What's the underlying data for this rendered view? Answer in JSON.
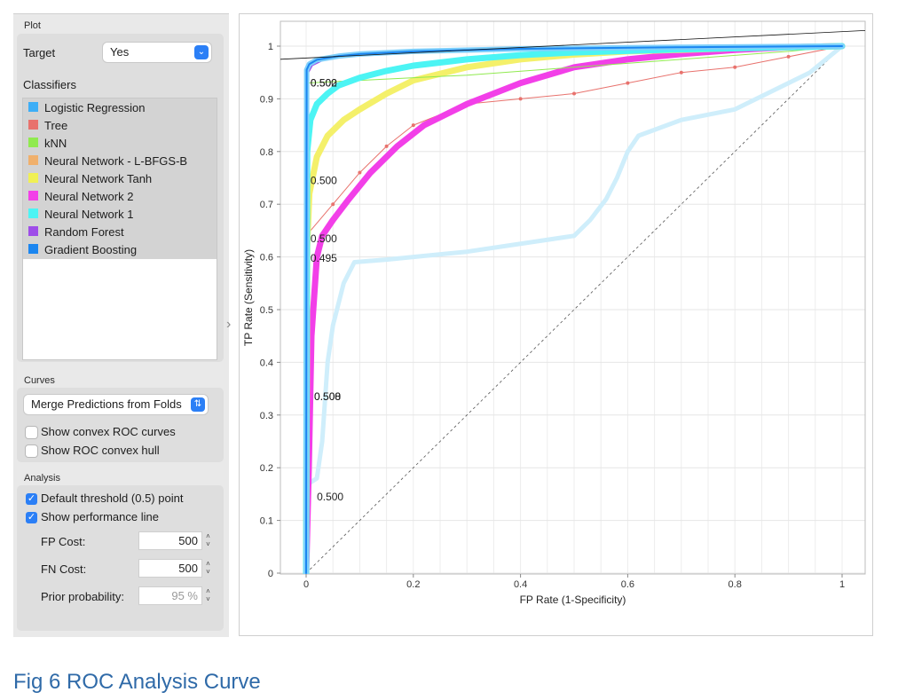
{
  "plot_box": {
    "title": "Plot",
    "target_label": "Target",
    "target_value": "Yes",
    "classifiers_label": "Classifiers",
    "classifiers": [
      {
        "label": "Logistic Regression",
        "color": "#3daef6"
      },
      {
        "label": "Tree",
        "color": "#e8726d"
      },
      {
        "label": "kNN",
        "color": "#90ea4f"
      },
      {
        "label": "Neural Network - L-BFGS-B",
        "color": "#f0b06c"
      },
      {
        "label": "Neural Network Tanh",
        "color": "#f0f054"
      },
      {
        "label": "Neural Network 2",
        "color": "#f23fe8"
      },
      {
        "label": "Neural Network 1",
        "color": "#4cf4f4"
      },
      {
        "label": "Random Forest",
        "color": "#9e4de8"
      },
      {
        "label": "Gradient Boosting",
        "color": "#1b86f0"
      }
    ]
  },
  "curves_box": {
    "title": "Curves",
    "merge_select": "Merge Predictions from Folds",
    "show_convex": "Show convex ROC curves",
    "show_hull": "Show ROC convex hull"
  },
  "analysis_box": {
    "title": "Analysis",
    "default_threshold": "Default threshold (0.5) point",
    "show_perf_line": "Show performance line",
    "fp_cost_label": "FP Cost:",
    "fp_cost_value": "500",
    "fn_cost_label": "FN Cost:",
    "fn_cost_value": "500",
    "prior_label": "Prior probability:",
    "prior_value": "95 %"
  },
  "caption": "Fig 6 ROC Analysis Curve",
  "chart_data": {
    "type": "line",
    "xlabel": "FP Rate (1-Specificity)",
    "ylabel": "TP Rate (Sensitivity)",
    "xlim": [
      0,
      1
    ],
    "ylim": [
      0,
      1
    ],
    "xticks": [
      "0",
      "0.2",
      "0.4",
      "0.6",
      "0.8",
      "1"
    ],
    "yticks": [
      "0",
      "0.1",
      "0.2",
      "0.3",
      "0.4",
      "0.5",
      "0.6",
      "0.7",
      "0.8",
      "0.9",
      "1"
    ],
    "grid": true,
    "series": [
      {
        "name": "Neural Network - L-BFGS-B",
        "color": "#cfeefb",
        "width": 5,
        "points": [
          [
            0,
            0
          ],
          [
            0.005,
            0.17
          ],
          [
            0.02,
            0.18
          ],
          [
            0.03,
            0.25
          ],
          [
            0.04,
            0.4
          ],
          [
            0.05,
            0.47
          ],
          [
            0.07,
            0.55
          ],
          [
            0.09,
            0.59
          ],
          [
            0.15,
            0.595
          ],
          [
            0.3,
            0.61
          ],
          [
            0.5,
            0.64
          ],
          [
            0.53,
            0.67
          ],
          [
            0.56,
            0.71
          ],
          [
            0.58,
            0.75
          ],
          [
            0.6,
            0.8
          ],
          [
            0.62,
            0.83
          ],
          [
            0.7,
            0.86
          ],
          [
            0.8,
            0.88
          ],
          [
            0.9,
            0.93
          ],
          [
            0.94,
            0.95
          ],
          [
            1,
            1
          ]
        ]
      },
      {
        "name": "Tree",
        "color": "#e8726d",
        "width": 1,
        "markers": true,
        "points": [
          [
            0,
            0.64
          ],
          [
            0.05,
            0.7
          ],
          [
            0.1,
            0.76
          ],
          [
            0.15,
            0.81
          ],
          [
            0.2,
            0.85
          ],
          [
            0.3,
            0.89
          ],
          [
            0.4,
            0.9
          ],
          [
            0.5,
            0.91
          ],
          [
            0.6,
            0.93
          ],
          [
            0.7,
            0.95
          ],
          [
            0.8,
            0.96
          ],
          [
            0.9,
            0.98
          ],
          [
            1,
            1
          ]
        ]
      },
      {
        "name": "Neural Network 2",
        "color": "#f23fe8",
        "width": 7,
        "points": [
          [
            0,
            0
          ],
          [
            0.005,
            0.2
          ],
          [
            0.01,
            0.45
          ],
          [
            0.02,
            0.6
          ],
          [
            0.03,
            0.64
          ],
          [
            0.05,
            0.67
          ],
          [
            0.08,
            0.71
          ],
          [
            0.12,
            0.76
          ],
          [
            0.17,
            0.81
          ],
          [
            0.22,
            0.85
          ],
          [
            0.3,
            0.89
          ],
          [
            0.4,
            0.93
          ],
          [
            0.5,
            0.96
          ],
          [
            0.6,
            0.975
          ],
          [
            0.7,
            0.985
          ],
          [
            0.8,
            0.993
          ],
          [
            0.9,
            0.998
          ],
          [
            1,
            1
          ]
        ]
      },
      {
        "name": "Neural Network Tanh",
        "color": "#f4f06a",
        "width": 7,
        "points": [
          [
            0,
            0
          ],
          [
            0.002,
            0.62
          ],
          [
            0.006,
            0.72
          ],
          [
            0.02,
            0.79
          ],
          [
            0.04,
            0.83
          ],
          [
            0.07,
            0.86
          ],
          [
            0.1,
            0.88
          ],
          [
            0.15,
            0.91
          ],
          [
            0.2,
            0.935
          ],
          [
            0.3,
            0.96
          ],
          [
            0.4,
            0.975
          ],
          [
            0.5,
            0.984
          ],
          [
            0.6,
            0.99
          ],
          [
            0.8,
            0.996
          ],
          [
            1,
            1
          ]
        ]
      },
      {
        "name": "kNN",
        "color": "#90ea4f",
        "width": 1,
        "points": [
          [
            0,
            0.93
          ],
          [
            0.1,
            0.935
          ],
          [
            0.3,
            0.945
          ],
          [
            0.5,
            0.96
          ],
          [
            0.7,
            0.975
          ],
          [
            0.9,
            0.99
          ],
          [
            1,
            1
          ]
        ]
      },
      {
        "name": "Neural Network 1",
        "color": "#4cf4f4",
        "width": 7,
        "points": [
          [
            0,
            0
          ],
          [
            0.002,
            0.8
          ],
          [
            0.008,
            0.86
          ],
          [
            0.02,
            0.89
          ],
          [
            0.04,
            0.91
          ],
          [
            0.06,
            0.925
          ],
          [
            0.1,
            0.94
          ],
          [
            0.15,
            0.953
          ],
          [
            0.2,
            0.963
          ],
          [
            0.3,
            0.975
          ],
          [
            0.4,
            0.983
          ],
          [
            0.5,
            0.988
          ],
          [
            0.7,
            0.994
          ],
          [
            1,
            1
          ]
        ]
      },
      {
        "name": "Random Forest",
        "color": "#9e4de8",
        "width": 4,
        "points": [
          [
            0,
            0
          ],
          [
            0.002,
            0.95
          ],
          [
            0.01,
            0.965
          ],
          [
            0.03,
            0.975
          ],
          [
            0.08,
            0.983
          ],
          [
            0.15,
            0.988
          ],
          [
            0.3,
            0.993
          ],
          [
            0.5,
            0.996
          ],
          [
            1,
            1
          ]
        ]
      },
      {
        "name": "Logistic Regression",
        "color": "#7fd0fb",
        "width": 6,
        "points": [
          [
            0,
            0
          ],
          [
            0.001,
            0.955
          ],
          [
            0.006,
            0.966
          ],
          [
            0.02,
            0.974
          ],
          [
            0.06,
            0.981
          ],
          [
            0.1,
            0.985
          ],
          [
            0.2,
            0.99
          ],
          [
            0.4,
            0.995
          ],
          [
            0.7,
            0.998
          ],
          [
            1,
            1
          ]
        ]
      },
      {
        "name": "Gradient Boosting",
        "color": "#1b86f0",
        "width": 2,
        "points": [
          [
            0,
            0
          ],
          [
            0.001,
            0.955
          ],
          [
            0.006,
            0.966
          ],
          [
            0.02,
            0.974
          ],
          [
            0.06,
            0.981
          ],
          [
            0.1,
            0.985
          ],
          [
            0.2,
            0.99
          ],
          [
            0.4,
            0.995
          ],
          [
            0.7,
            0.998
          ],
          [
            1,
            1
          ]
        ]
      }
    ],
    "diagonal": {
      "color": "#555555",
      "dashed": true
    },
    "performance_line": {
      "color": "#111111",
      "points": [
        [
          -0.05,
          0.975
        ],
        [
          1.05,
          1.03
        ]
      ]
    },
    "threshold_labels": [
      {
        "text": "0.502",
        "x": 0.008,
        "y": 0.93
      },
      {
        "text": "0.500",
        "x": 0.008,
        "y": 0.93
      },
      {
        "text": "0.500",
        "x": 0.008,
        "y": 0.745
      },
      {
        "text": "0.500",
        "x": 0.008,
        "y": 0.635
      },
      {
        "text": "0.495",
        "x": 0.008,
        "y": 0.598
      },
      {
        "text": "0.500",
        "x": 0.015,
        "y": 0.335
      },
      {
        "text": "0.508",
        "x": 0.015,
        "y": 0.335
      },
      {
        "text": "0.500",
        "x": 0.02,
        "y": 0.145
      }
    ]
  }
}
